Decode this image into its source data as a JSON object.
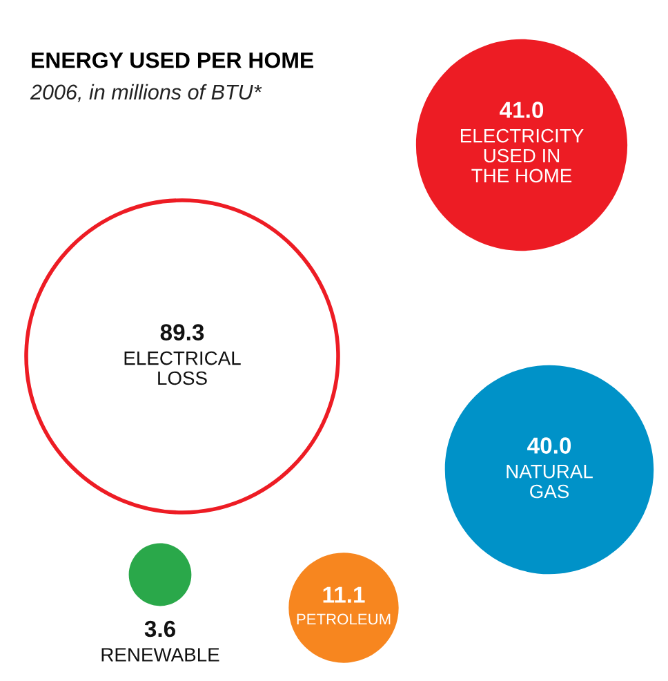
{
  "chart_data": {
    "type": "other",
    "title": "ENERGY USED PER HOME",
    "subtitle": "2006, in millions of BTU*",
    "categories": [
      "ELECTRICAL\nLOSS",
      "ELECTRICITY\nUSED IN\nTHE HOME",
      "NATURAL\nGAS",
      "RENEWABLE",
      "PETROLEUM"
    ],
    "values": [
      89.3,
      41.0,
      40.0,
      3.6,
      11.1
    ],
    "value_labels": [
      "89.3",
      "41.0",
      "40.0",
      "3.6",
      "11.1"
    ],
    "colors": [
      "#ed1c24",
      "#ed1c24",
      "#0092c8",
      "#2aa84a",
      "#f7861f"
    ]
  }
}
